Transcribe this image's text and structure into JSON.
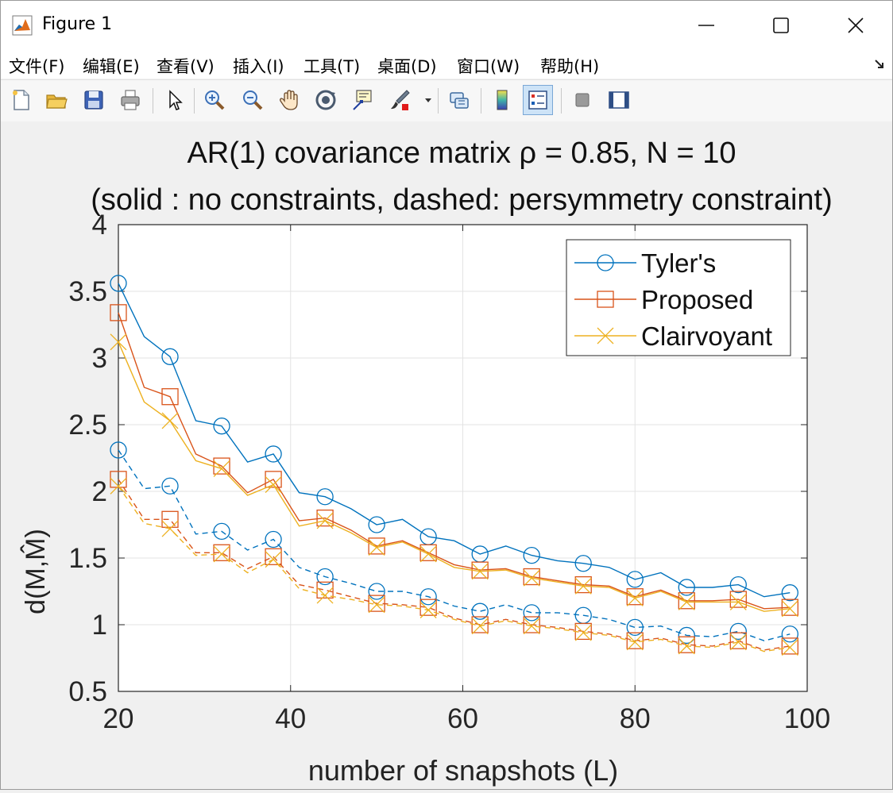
{
  "window": {
    "title": "Figure 1",
    "controls": {
      "minimize": "minimize",
      "maximize": "maximize",
      "close": "close"
    }
  },
  "menu": [
    "文件(F)",
    "编辑(E)",
    "查看(V)",
    "插入(I)",
    "工具(T)",
    "桌面(D)",
    "窗口(W)",
    "帮助(H)"
  ],
  "toolbar": [
    "new-figure-icon",
    "open-file-icon",
    "save-icon",
    "print-icon",
    "arrow-pointer-icon",
    "zoom-in-icon",
    "zoom-out-icon",
    "pan-hand-icon",
    "rotate-3d-icon",
    "data-cursor-icon",
    "brush-icon",
    "link-plot-icon",
    "colorbar-icon",
    "legend-icon",
    "hide-plot-tools-icon",
    "show-plot-tools-icon"
  ],
  "chart_data": {
    "type": "line",
    "title": "AR(1) covariance matrix ρ = 0.85, N = 10",
    "subtitle": "(solid : no constraints, dashed: persymmetry constraint)",
    "xlabel": "number of snapshots (L)",
    "ylabel": "d(M,M̂)",
    "xlim": [
      20,
      100
    ],
    "ylim": [
      0.5,
      4
    ],
    "xticks": [
      20,
      40,
      60,
      80,
      100
    ],
    "yticks": [
      0.5,
      1,
      1.5,
      2,
      2.5,
      3,
      3.5,
      4
    ],
    "xtick_labels": [
      "20",
      "40",
      "60",
      "80",
      "100"
    ],
    "ytick_labels": [
      "0.5",
      "1",
      "1.5",
      "2",
      "2.5",
      "3",
      "3.5",
      "4"
    ],
    "grid": true,
    "legend_position": "top-right",
    "legend": [
      "Tyler's",
      "Proposed",
      "Clairvoyant"
    ],
    "x": [
      20,
      23,
      26,
      29,
      32,
      35,
      38,
      41,
      44,
      47,
      50,
      53,
      56,
      59,
      62,
      65,
      68,
      71,
      74,
      77,
      80,
      83,
      86,
      89,
      92,
      95,
      98
    ],
    "marker_every": 2,
    "series": [
      {
        "name": "Tyler's",
        "style": "solid",
        "marker": "circle",
        "color": "#0072BD",
        "values": [
          3.56,
          3.16,
          3.01,
          2.53,
          2.49,
          2.22,
          2.28,
          1.99,
          1.96,
          1.87,
          1.75,
          1.79,
          1.66,
          1.63,
          1.53,
          1.59,
          1.52,
          1.48,
          1.46,
          1.43,
          1.34,
          1.39,
          1.28,
          1.28,
          1.3,
          1.21,
          1.24
        ]
      },
      {
        "name": "Proposed",
        "style": "solid",
        "marker": "square",
        "color": "#D95319",
        "values": [
          3.34,
          2.78,
          2.71,
          2.28,
          2.19,
          1.99,
          2.09,
          1.78,
          1.8,
          1.71,
          1.59,
          1.63,
          1.54,
          1.45,
          1.41,
          1.42,
          1.36,
          1.33,
          1.3,
          1.29,
          1.21,
          1.26,
          1.18,
          1.18,
          1.19,
          1.12,
          1.13
        ]
      },
      {
        "name": "Clairvoyant",
        "style": "solid",
        "marker": "x",
        "color": "#EDB120",
        "values": [
          3.12,
          2.67,
          2.53,
          2.23,
          2.17,
          1.97,
          2.05,
          1.74,
          1.78,
          1.69,
          1.58,
          1.62,
          1.53,
          1.43,
          1.4,
          1.41,
          1.35,
          1.32,
          1.29,
          1.28,
          1.2,
          1.25,
          1.17,
          1.17,
          1.17,
          1.1,
          1.12
        ]
      },
      {
        "name": "",
        "style": "dashed",
        "marker": "circle",
        "color": "#0072BD",
        "values": [
          2.31,
          2.02,
          2.04,
          1.68,
          1.7,
          1.56,
          1.64,
          1.43,
          1.36,
          1.31,
          1.25,
          1.25,
          1.21,
          1.14,
          1.1,
          1.15,
          1.09,
          1.09,
          1.07,
          1.04,
          0.98,
          0.99,
          0.92,
          0.91,
          0.95,
          0.88,
          0.93
        ]
      },
      {
        "name": "",
        "style": "dashed",
        "marker": "square",
        "color": "#D95319",
        "values": [
          2.09,
          1.79,
          1.79,
          1.54,
          1.54,
          1.42,
          1.51,
          1.3,
          1.26,
          1.21,
          1.16,
          1.15,
          1.13,
          1.05,
          1.0,
          1.04,
          1.0,
          0.98,
          0.95,
          0.93,
          0.88,
          0.9,
          0.85,
          0.84,
          0.88,
          0.81,
          0.84
        ]
      },
      {
        "name": "",
        "style": "dashed",
        "marker": "x",
        "color": "#EDB120",
        "values": [
          2.04,
          1.76,
          1.72,
          1.52,
          1.53,
          1.39,
          1.49,
          1.27,
          1.22,
          1.19,
          1.15,
          1.14,
          1.11,
          1.04,
          0.99,
          1.03,
          0.99,
          0.97,
          0.94,
          0.92,
          0.87,
          0.89,
          0.84,
          0.83,
          0.87,
          0.8,
          0.83
        ]
      }
    ]
  }
}
